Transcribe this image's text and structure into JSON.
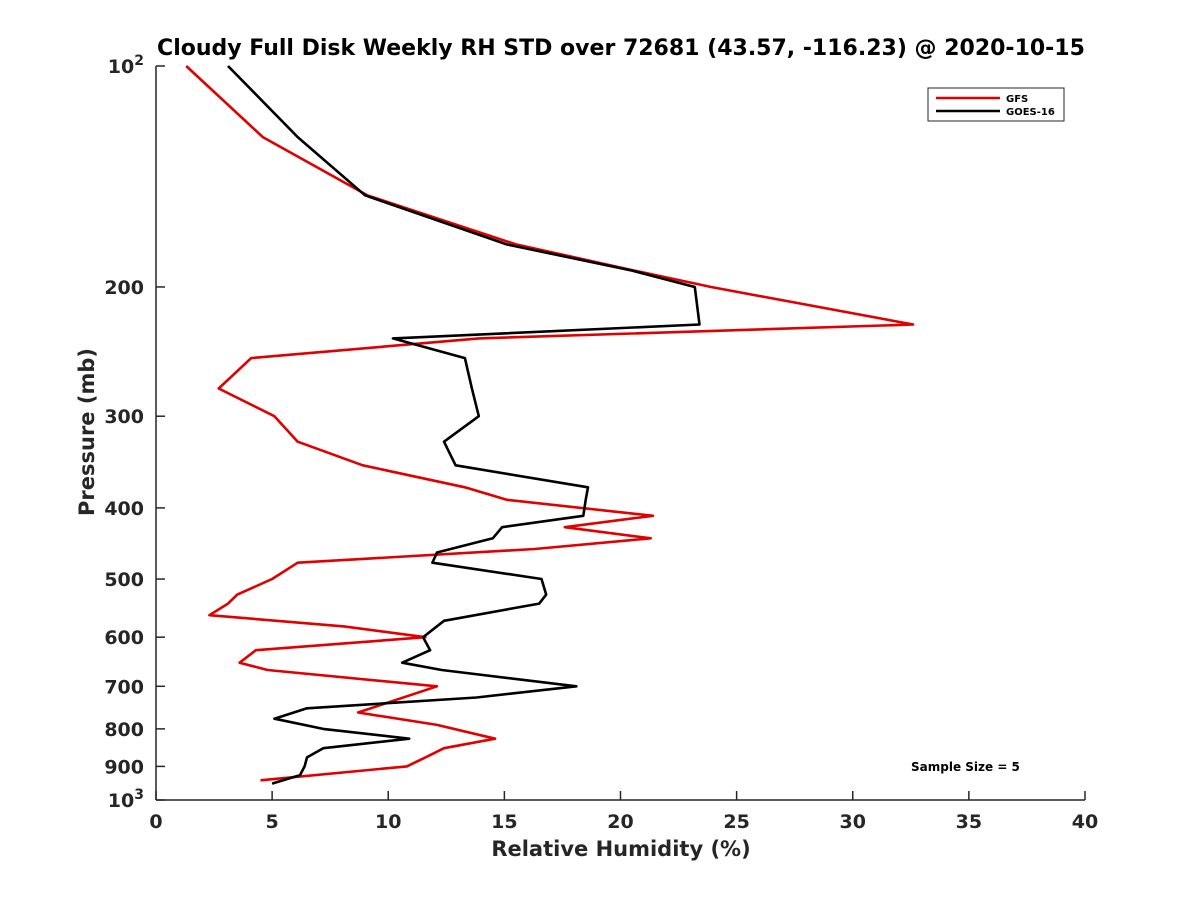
{
  "chart_data": {
    "type": "line",
    "title": "Cloudy Full Disk Weekly RH STD over 72681 (43.57, -116.23) @ 2020-10-15",
    "xlabel": "Relative Humidity (%)",
    "ylabel": "Pressure (mb)",
    "xlim": [
      0,
      40
    ],
    "ylim": [
      100,
      1000
    ],
    "y_scale": "log",
    "y_reversed": true,
    "grid": false,
    "legend_position": "top-right",
    "x_ticks": [
      0,
      5,
      10,
      15,
      20,
      25,
      30,
      35,
      40
    ],
    "x_tick_labels": [
      "0",
      "5",
      "10",
      "15",
      "20",
      "25",
      "30",
      "35",
      "40"
    ],
    "y_ticks": [
      100,
      200,
      300,
      400,
      500,
      600,
      700,
      800,
      900,
      1000
    ],
    "y_tick_labels": [
      {
        "base": "10",
        "exp": "2"
      },
      {
        "base": "200",
        "exp": ""
      },
      {
        "base": "300",
        "exp": ""
      },
      {
        "base": "400",
        "exp": ""
      },
      {
        "base": "500",
        "exp": ""
      },
      {
        "base": "600",
        "exp": ""
      },
      {
        "base": "700",
        "exp": ""
      },
      {
        "base": "800",
        "exp": ""
      },
      {
        "base": "900",
        "exp": ""
      },
      {
        "base": "10",
        "exp": "3"
      }
    ],
    "annotation": "Sample Size = 5",
    "series": [
      {
        "name": "GFS",
        "color": "#e00000",
        "points": [
          [
            1.3,
            100
          ],
          [
            4.6,
            125
          ],
          [
            9.1,
            150
          ],
          [
            15.5,
            175
          ],
          [
            20.6,
            190
          ],
          [
            23.9,
            200
          ],
          [
            32.6,
            225
          ],
          [
            13.9,
            235
          ],
          [
            4.1,
            250
          ],
          [
            2.7,
            275
          ],
          [
            5.1,
            300
          ],
          [
            6.1,
            325
          ],
          [
            8.9,
            350
          ],
          [
            13.3,
            375
          ],
          [
            15.1,
            390
          ],
          [
            21.4,
            410
          ],
          [
            17.6,
            425
          ],
          [
            21.3,
            440
          ],
          [
            16.3,
            455
          ],
          [
            6.1,
            475
          ],
          [
            5.0,
            500
          ],
          [
            3.5,
            525
          ],
          [
            3.1,
            540
          ],
          [
            2.3,
            560
          ],
          [
            8.1,
            580
          ],
          [
            11.6,
            600
          ],
          [
            4.3,
            625
          ],
          [
            3.6,
            650
          ],
          [
            4.8,
            665
          ],
          [
            12.1,
            700
          ],
          [
            8.7,
            760
          ],
          [
            12.1,
            790
          ],
          [
            14.6,
            825
          ],
          [
            12.4,
            850
          ],
          [
            11.6,
            875
          ],
          [
            10.8,
            900
          ],
          [
            4.5,
            940
          ]
        ]
      },
      {
        "name": "GOES-16",
        "color": "#000000",
        "points": [
          [
            3.1,
            100
          ],
          [
            6.1,
            125
          ],
          [
            9.0,
            150
          ],
          [
            15.1,
            175
          ],
          [
            20.5,
            190
          ],
          [
            23.2,
            200
          ],
          [
            23.4,
            225
          ],
          [
            10.2,
            235
          ],
          [
            13.3,
            250
          ],
          [
            13.6,
            275
          ],
          [
            13.9,
            300
          ],
          [
            12.4,
            325
          ],
          [
            12.9,
            350
          ],
          [
            18.6,
            375
          ],
          [
            18.5,
            390
          ],
          [
            18.4,
            410
          ],
          [
            14.9,
            425
          ],
          [
            14.5,
            440
          ],
          [
            12.1,
            460
          ],
          [
            11.9,
            475
          ],
          [
            16.6,
            500
          ],
          [
            16.8,
            525
          ],
          [
            16.5,
            540
          ],
          [
            12.4,
            570
          ],
          [
            11.5,
            600
          ],
          [
            11.8,
            625
          ],
          [
            10.6,
            650
          ],
          [
            12.3,
            665
          ],
          [
            18.1,
            700
          ],
          [
            13.8,
            725
          ],
          [
            6.5,
            750
          ],
          [
            5.1,
            775
          ],
          [
            7.2,
            800
          ],
          [
            10.9,
            825
          ],
          [
            7.2,
            850
          ],
          [
            6.5,
            875
          ],
          [
            6.4,
            900
          ],
          [
            6.2,
            925
          ],
          [
            5.0,
            950
          ]
        ]
      }
    ]
  }
}
